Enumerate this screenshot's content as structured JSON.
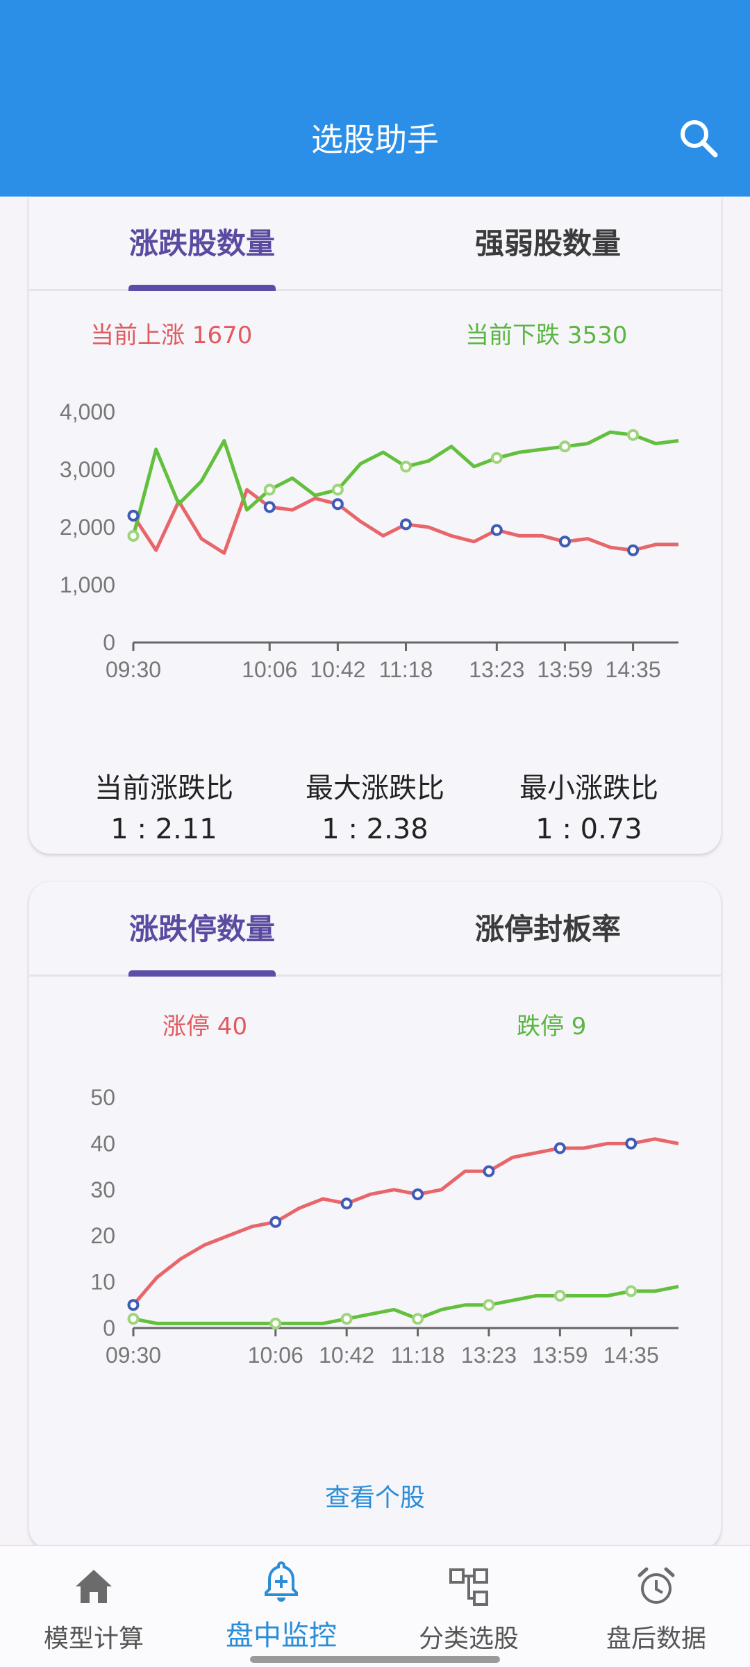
{
  "app": {
    "title": "选股助手"
  },
  "card1": {
    "tabs": [
      "涨跌股数量",
      "强弱股数量"
    ],
    "active_tab": 0,
    "legend_up": "当前上涨 1670",
    "legend_down": "当前下跌 3530",
    "stats": [
      {
        "label": "当前涨跌比",
        "value": "1 : 2.11"
      },
      {
        "label": "最大涨跌比",
        "value": "1 : 2.38"
      },
      {
        "label": "最小涨跌比",
        "value": "1 : 0.73"
      }
    ]
  },
  "card2": {
    "tabs": [
      "涨跌停数量",
      "涨停封板率"
    ],
    "active_tab": 0,
    "legend_up": "涨停 40",
    "legend_down": "跌停 9",
    "link": "查看个股"
  },
  "colors": {
    "up": "#e8666a",
    "down": "#62c03c",
    "marker": "#3f5bb5",
    "marker_down": "#9fd47d",
    "appbar": "#2b8fe8",
    "accent": "#5a4aa0"
  },
  "nav": {
    "items": [
      {
        "label": "模型计算",
        "icon": "home-icon"
      },
      {
        "label": "盘中监控",
        "icon": "bell-plus-icon"
      },
      {
        "label": "分类选股",
        "icon": "hierarchy-icon"
      },
      {
        "label": "盘后数据",
        "icon": "alarm-clock-icon"
      }
    ],
    "active": 1
  },
  "chart_data": [
    {
      "type": "line",
      "title": "",
      "xlabel": "",
      "ylabel": "",
      "x_ticks": [
        "09:30",
        "10:06",
        "10:42",
        "11:18",
        "13:23",
        "13:59",
        "14:35"
      ],
      "y_ticks": [
        "0",
        "1,000",
        "2,000",
        "3,000",
        "4,000"
      ],
      "ylim": [
        0,
        4000
      ],
      "grid": false,
      "x": [
        "09:30",
        "09:36",
        "09:42",
        "09:48",
        "09:54",
        "10:00",
        "10:06",
        "10:18",
        "10:30",
        "10:42",
        "10:54",
        "11:06",
        "11:18",
        "11:24",
        "13:05",
        "13:14",
        "13:23",
        "13:35",
        "13:47",
        "13:59",
        "14:11",
        "14:23",
        "14:35",
        "14:47",
        "14:59"
      ],
      "series": [
        {
          "name": "up",
          "color_key": "up",
          "values": [
            2200,
            1600,
            2450,
            1800,
            1550,
            2650,
            2350,
            2300,
            2500,
            2400,
            2100,
            1850,
            2050,
            2000,
            1850,
            1750,
            1950,
            1850,
            1850,
            1750,
            1800,
            1650,
            1600,
            1700,
            1700
          ]
        },
        {
          "name": "down",
          "color_key": "down",
          "values": [
            1850,
            3350,
            2400,
            2800,
            3500,
            2300,
            2650,
            2850,
            2550,
            2650,
            3100,
            3300,
            3050,
            3150,
            3400,
            3050,
            3200,
            3300,
            3350,
            3400,
            3450,
            3650,
            3600,
            3450,
            3500
          ]
        }
      ],
      "markers": {
        "up": [
          [
            0,
            2200
          ],
          [
            6,
            2350
          ],
          [
            9,
            2400
          ],
          [
            12,
            2050
          ],
          [
            16,
            1950
          ],
          [
            19,
            1750
          ],
          [
            22,
            1600
          ]
        ],
        "down": [
          [
            0,
            1850
          ],
          [
            6,
            2650
          ],
          [
            9,
            2650
          ],
          [
            12,
            3050
          ],
          [
            16,
            3200
          ],
          [
            19,
            3400
          ],
          [
            22,
            3600
          ]
        ]
      }
    },
    {
      "type": "line",
      "title": "",
      "xlabel": "",
      "ylabel": "",
      "x_ticks": [
        "09:30",
        "10:06",
        "10:42",
        "11:18",
        "13:23",
        "13:59",
        "14:35"
      ],
      "y_ticks": [
        "0",
        "10",
        "20",
        "30",
        "40",
        "50"
      ],
      "ylim": [
        0,
        50
      ],
      "grid": false,
      "x": [
        "09:30",
        "09:36",
        "09:42",
        "09:48",
        "09:54",
        "10:00",
        "10:06",
        "10:18",
        "10:30",
        "10:42",
        "10:54",
        "11:06",
        "11:18",
        "13:05",
        "13:14",
        "13:23",
        "13:35",
        "13:47",
        "13:59",
        "14:11",
        "14:23",
        "14:35",
        "14:47",
        "14:59"
      ],
      "series": [
        {
          "name": "limit-up",
          "color_key": "up",
          "values": [
            5,
            11,
            15,
            18,
            20,
            22,
            23,
            26,
            28,
            27,
            29,
            30,
            29,
            30,
            34,
            34,
            37,
            38,
            39,
            39,
            40,
            40,
            41,
            40
          ]
        },
        {
          "name": "limit-down",
          "color_key": "down",
          "values": [
            2,
            1,
            1,
            1,
            1,
            1,
            1,
            1,
            1,
            2,
            3,
            4,
            2,
            4,
            5,
            5,
            6,
            7,
            7,
            7,
            7,
            8,
            8,
            9
          ]
        }
      ],
      "markers": {
        "up": [
          [
            0,
            5
          ],
          [
            6,
            23
          ],
          [
            9,
            27
          ],
          [
            12,
            29
          ],
          [
            15,
            34
          ],
          [
            18,
            39
          ],
          [
            21,
            40
          ]
        ],
        "down": [
          [
            0,
            2
          ],
          [
            6,
            1
          ],
          [
            9,
            2
          ],
          [
            12,
            2
          ],
          [
            15,
            5
          ],
          [
            18,
            7
          ],
          [
            21,
            8
          ]
        ]
      }
    }
  ]
}
